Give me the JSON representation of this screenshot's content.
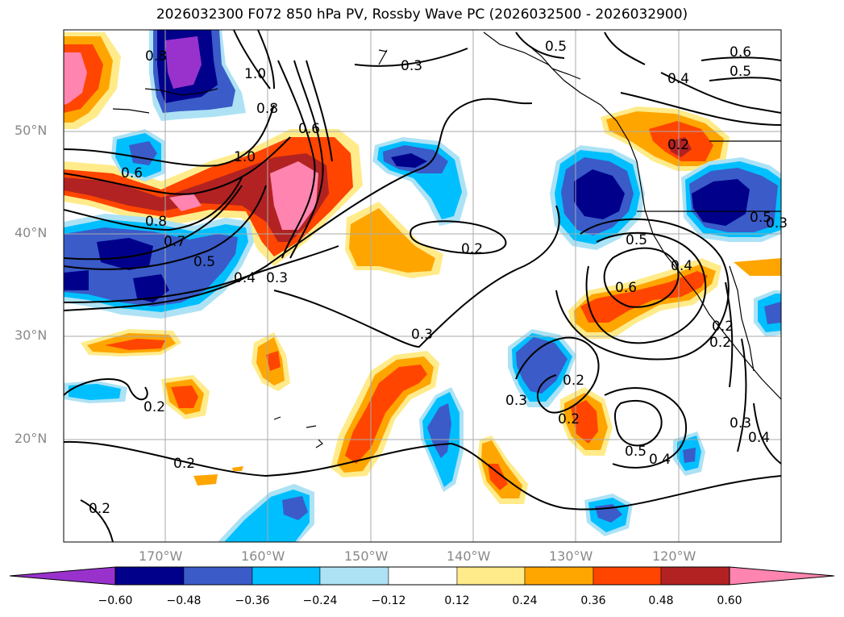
{
  "title": "2026032300 F072 850 hPa PV, Rossby Wave PC (2026032500 - 2026032900)",
  "latitude_labels": [
    "50°N",
    "40°N",
    "30°N",
    "20°N"
  ],
  "longitude_labels": [
    "170°W",
    "160°W",
    "150°W",
    "140°W",
    "130°W",
    "120°W"
  ],
  "colorbar": {
    "tick_labels": [
      "−0.60",
      "−0.48",
      "−0.36",
      "−0.24",
      "−0.12",
      "0.12",
      "0.24",
      "0.36",
      "0.48",
      "0.60"
    ],
    "colors": [
      "#9932CC",
      "#00008B",
      "#3A5BC8",
      "#00BFFF",
      "#ADE2F5",
      "#FFFFFF",
      "#FFEB8A",
      "#FFA500",
      "#FF4500",
      "#B22222",
      "#FF85B0"
    ]
  },
  "contour_labels": [
    "0.3",
    "0.5",
    "0.6",
    "0.5",
    "0.4",
    "0.8",
    "1.0",
    "0.8",
    "0.6",
    "1.0",
    "0.6",
    "0.8",
    "0.7",
    "0.5",
    "0.4",
    "0.3",
    "0.2",
    "0.2",
    "0.5",
    "0.4",
    "0.6",
    "0.3",
    "0.2",
    "0.3",
    "0.2",
    "0.2",
    "0.5",
    "0.4",
    "0.3",
    "0.4",
    "0.2",
    "0.2",
    "0.2",
    "0.2",
    "0.3",
    "0.5"
  ]
}
